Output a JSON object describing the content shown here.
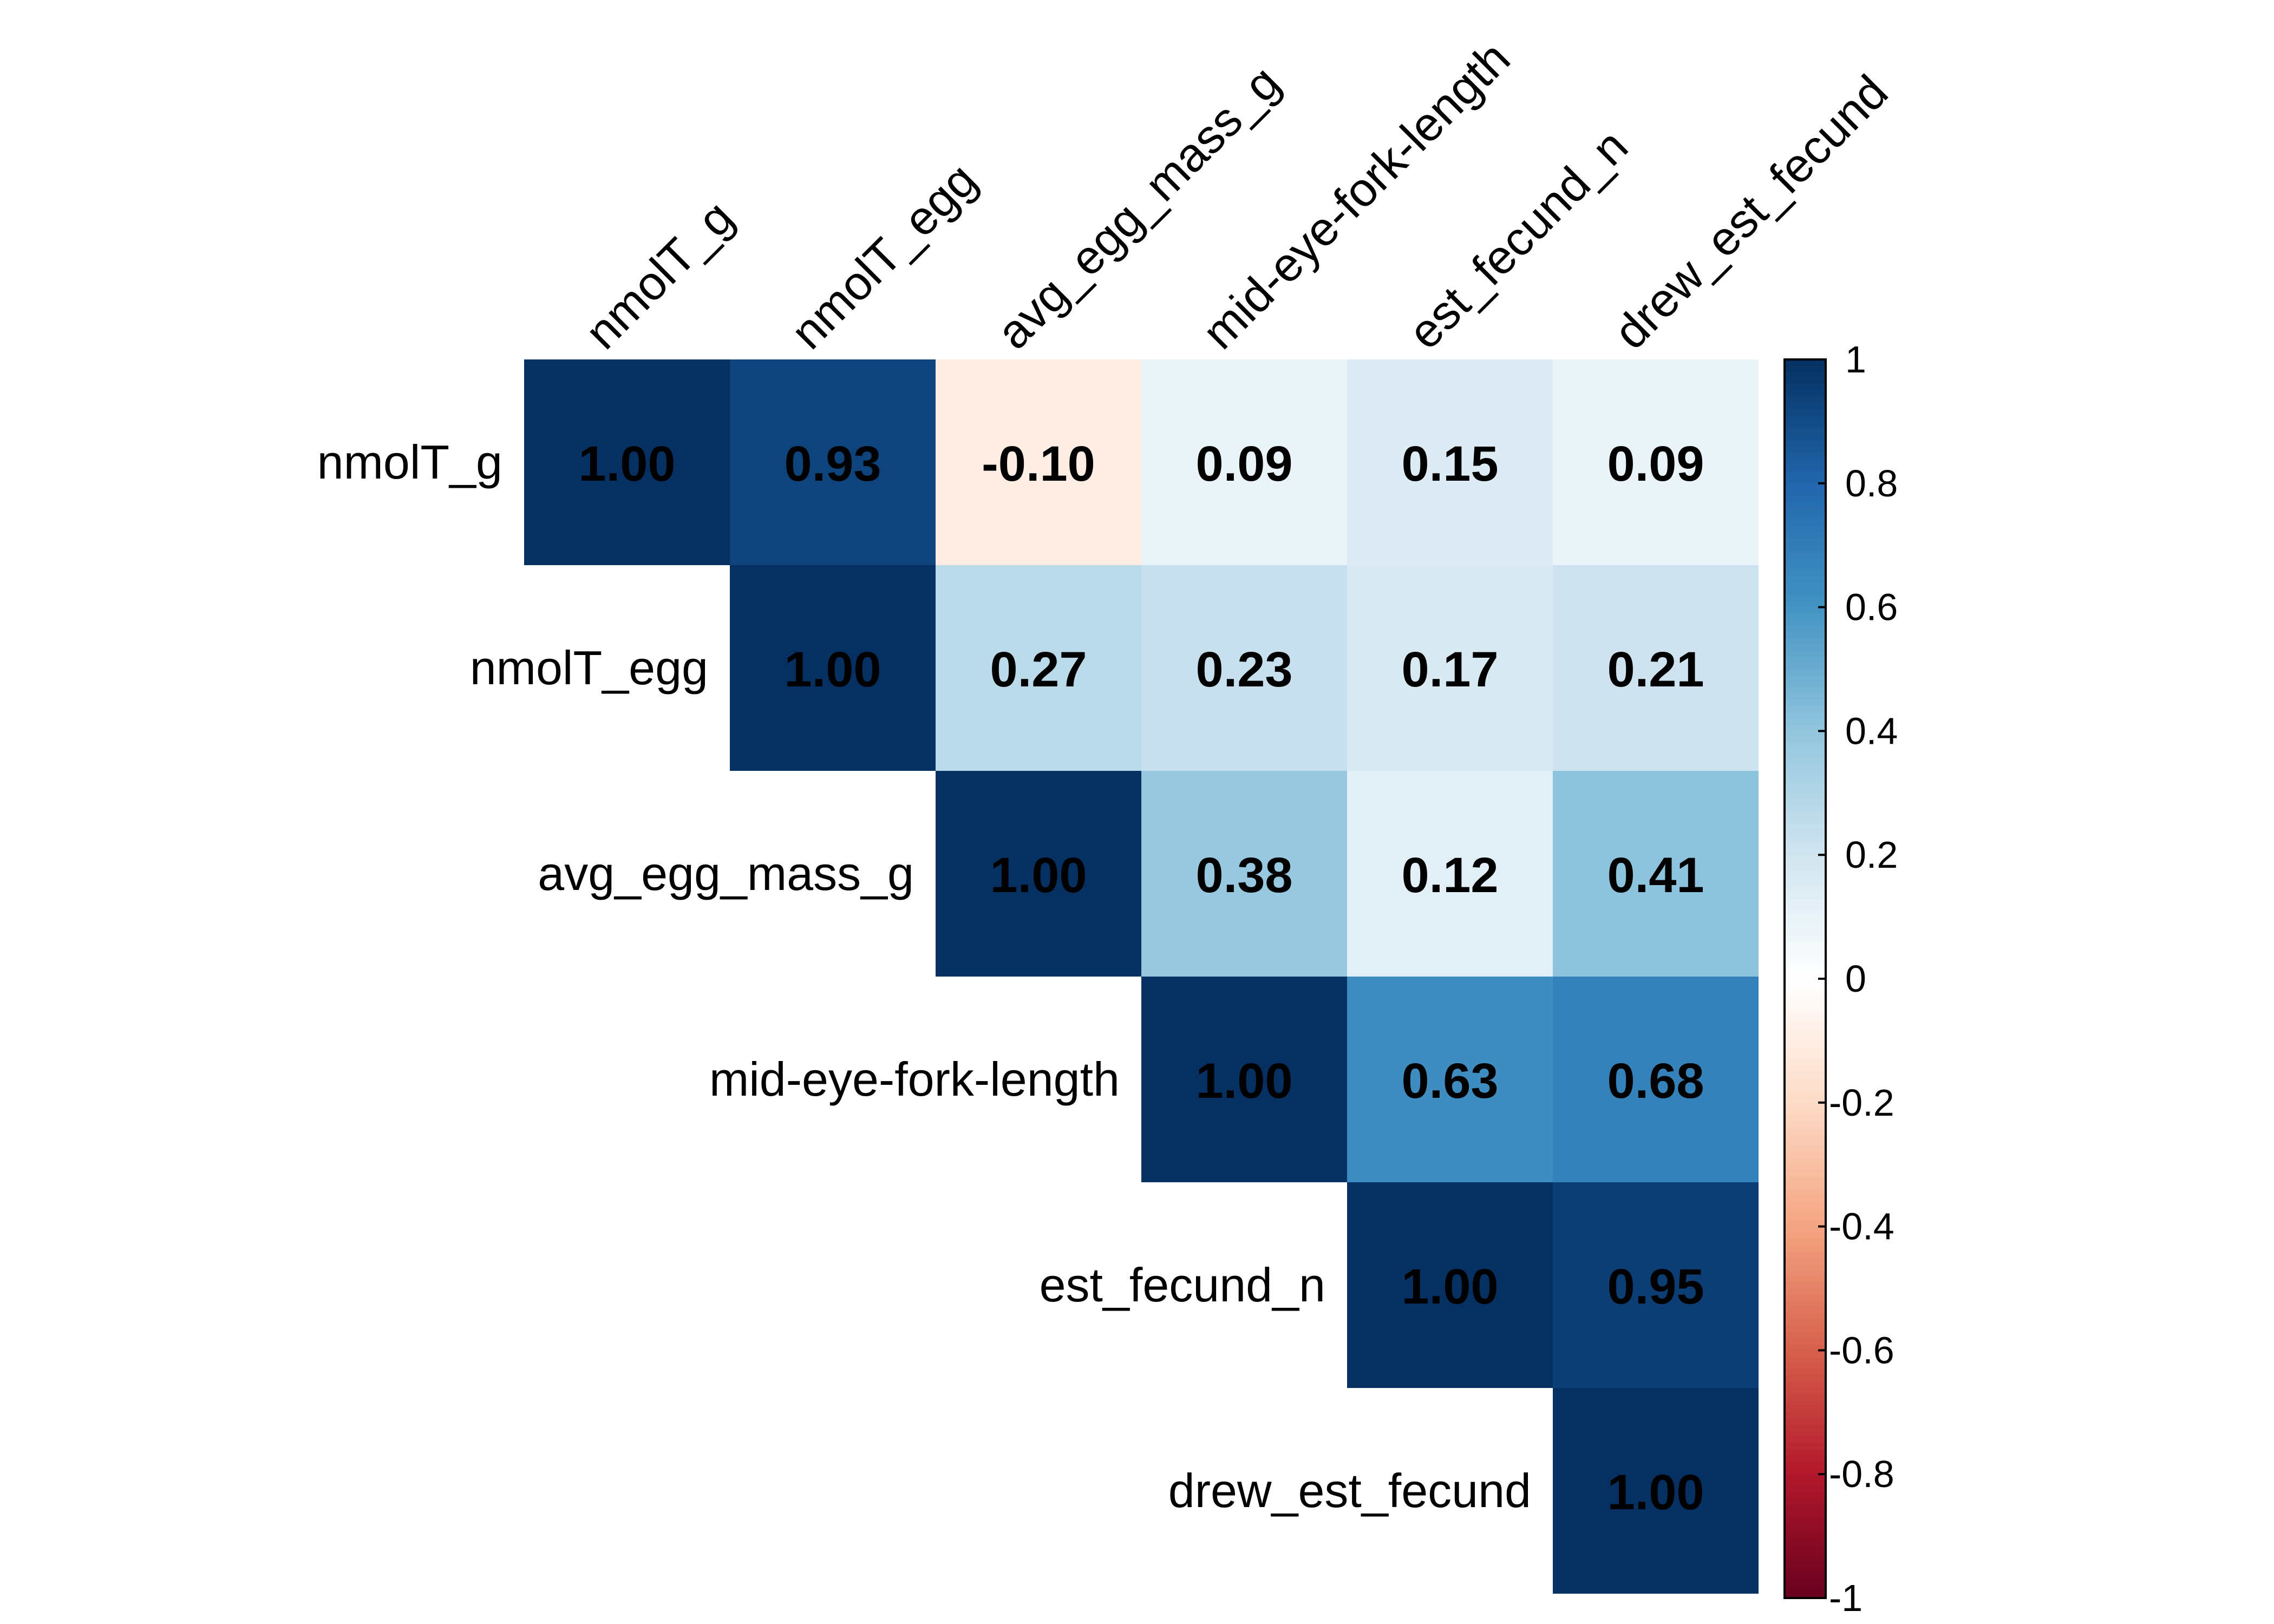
{
  "chart_data": {
    "type": "heatmap",
    "subtype": "correlation-upper-triangle",
    "variables": [
      "nmolT_g",
      "nmolT_egg",
      "avg_egg_mass_g",
      "mid-eye-fork-length",
      "est_fecund_n",
      "drew_est_fecund"
    ],
    "row_labels": [
      "nmolT_g",
      "nmolT_egg",
      "avg_egg_mass_g",
      "mid-eye-fork-length",
      "est_fecund_n",
      "drew_est_fecund"
    ],
    "column_labels": [
      "nmolT_g",
      "nmolT_egg",
      "avg_egg_mass_g",
      "mid-eye-fork-length",
      "est_fecund_n",
      "drew_est_fecund"
    ],
    "matrix": [
      [
        1.0,
        0.93,
        -0.1,
        0.09,
        0.15,
        0.09
      ],
      [
        null,
        1.0,
        0.27,
        0.23,
        0.17,
        0.21
      ],
      [
        null,
        null,
        1.0,
        0.38,
        0.12,
        0.41
      ],
      [
        null,
        null,
        null,
        1.0,
        0.63,
        0.68
      ],
      [
        null,
        null,
        null,
        null,
        1.0,
        0.95
      ],
      [
        null,
        null,
        null,
        null,
        null,
        1.0
      ]
    ],
    "value_labels": [
      [
        "1.00",
        "0.93",
        "-0.10",
        "0.09",
        "0.15",
        "0.09"
      ],
      [
        null,
        "1.00",
        "0.27",
        "0.23",
        "0.17",
        "0.21"
      ],
      [
        null,
        null,
        "1.00",
        "0.38",
        "0.12",
        "0.41"
      ],
      [
        null,
        null,
        null,
        "1.00",
        "0.63",
        "0.68"
      ],
      [
        null,
        null,
        null,
        null,
        "1.00",
        "0.95"
      ],
      [
        null,
        null,
        null,
        null,
        null,
        "1.00"
      ]
    ],
    "colorbar": {
      "range": [
        -1,
        1
      ],
      "ticks": [
        1,
        0.8,
        0.6,
        0.4,
        0.2,
        0,
        -0.2,
        -0.4,
        -0.6,
        -0.8,
        -1
      ],
      "tick_labels": [
        "1",
        "0.8",
        "0.6",
        "0.4",
        "0.2",
        "0",
        "-0.2",
        "-0.4",
        "-0.6",
        "-0.8",
        "-1"
      ],
      "placement": "right"
    },
    "colors": {
      "palette": [
        "#67001F",
        "#B2182B",
        "#D6604D",
        "#F4A582",
        "#FDDBC7",
        "#FFFFFF",
        "#D1E5F0",
        "#92C5DE",
        "#4393C3",
        "#2166AC",
        "#053061"
      ],
      "value_text": "#000000",
      "label_text": "#000000"
    },
    "title": "",
    "xlabel": "",
    "ylabel": ""
  }
}
